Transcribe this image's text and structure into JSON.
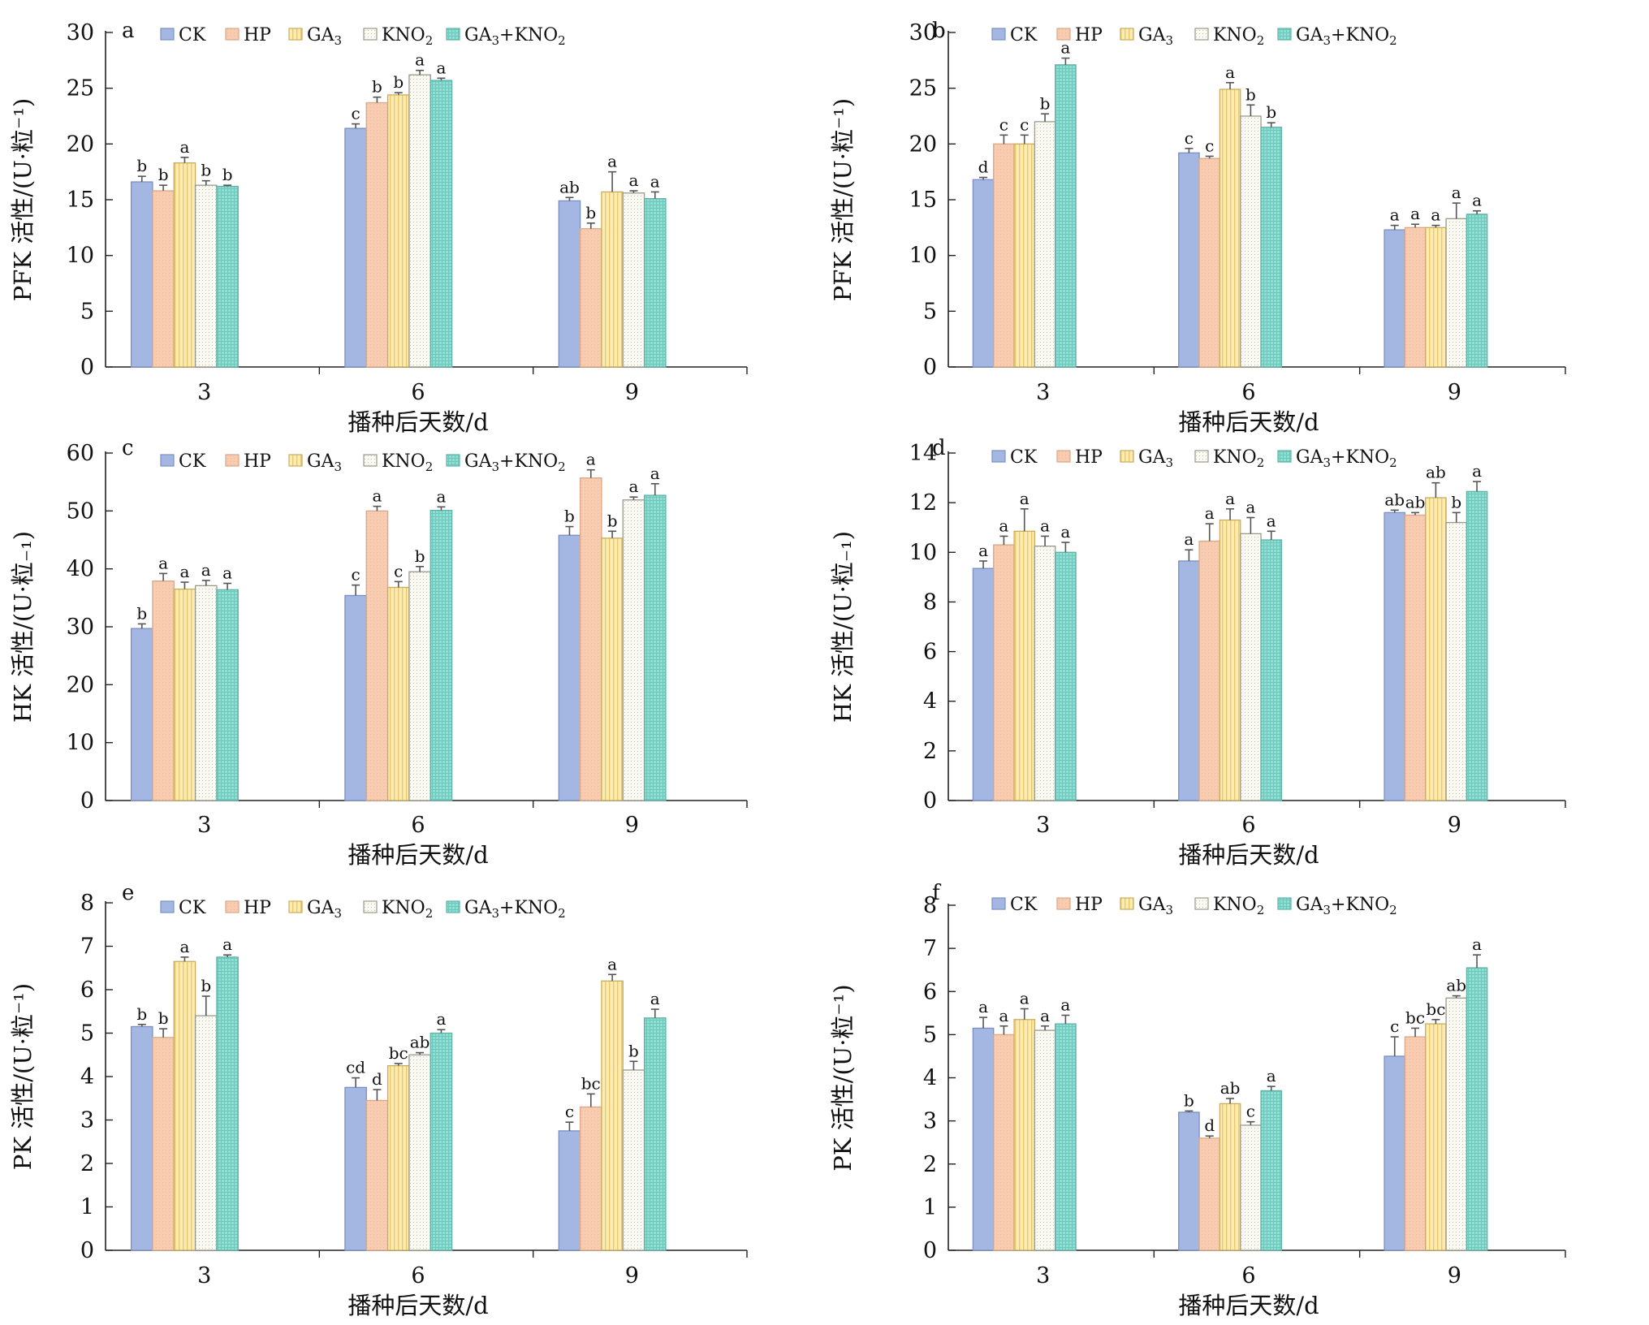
{
  "legend_labels": {
    "CK": "CK",
    "HP": "HP",
    "GA3_main": "GA",
    "GA3_sub": "3",
    "KNO2_main": "KNO",
    "KNO2_sub": "2",
    "GA3KNO2_a": "GA",
    "GA3KNO2_sub1": "3",
    "GA3KNO2_b": "+KNO",
    "GA3KNO2_sub2": "2"
  },
  "colors": {
    "CK": "#a4b7e3",
    "HP": "#f8ccb0",
    "GA3": "#fbe7a3",
    "KNO2": "#fafaf2",
    "GA3+KNO2": "#8fdad0"
  },
  "chart_data": [
    {
      "id": "a",
      "type": "bar",
      "panel_label": "a",
      "categories": [
        "3",
        "6",
        "9"
      ],
      "xlabel": "播种后天数/d",
      "ylabel": "PFK 活性/(U·粒⁻¹)",
      "ylim": [
        0,
        30
      ],
      "yticks": [
        0,
        5,
        10,
        15,
        20,
        25,
        30
      ],
      "series": [
        {
          "name": "CK",
          "values": [
            16.6,
            21.4,
            14.9
          ],
          "errors": [
            0.5,
            0.4,
            0.3
          ],
          "sig": [
            "b",
            "c",
            "ab"
          ]
        },
        {
          "name": "HP",
          "values": [
            15.8,
            23.7,
            12.4
          ],
          "errors": [
            0.5,
            0.5,
            0.5
          ],
          "sig": [
            "b",
            "b",
            "b"
          ]
        },
        {
          "name": "GA3",
          "values": [
            18.3,
            24.4,
            15.7
          ],
          "errors": [
            0.5,
            0.2,
            1.8
          ],
          "sig": [
            "a",
            "b",
            "a"
          ]
        },
        {
          "name": "KNO2",
          "values": [
            16.3,
            26.2,
            15.6
          ],
          "errors": [
            0.4,
            0.4,
            0.2
          ],
          "sig": [
            "b",
            "a",
            "a"
          ]
        },
        {
          "name": "GA3+KNO2",
          "values": [
            16.2,
            25.7,
            15.1
          ],
          "errors": [
            0.1,
            0.2,
            0.6
          ],
          "sig": [
            "b",
            "a",
            "a"
          ]
        }
      ]
    },
    {
      "id": "b",
      "type": "bar",
      "panel_label": "b",
      "categories": [
        "3",
        "6",
        "9"
      ],
      "xlabel": "播种后天数/d",
      "ylabel": "PFK 活性/(U·粒⁻¹)",
      "ylim": [
        0,
        30
      ],
      "yticks": [
        0,
        5,
        10,
        15,
        20,
        25,
        30
      ],
      "series": [
        {
          "name": "CK",
          "values": [
            16.8,
            19.2,
            12.3
          ],
          "errors": [
            0.2,
            0.4,
            0.4
          ],
          "sig": [
            "d",
            "c",
            "a"
          ]
        },
        {
          "name": "HP",
          "values": [
            20.0,
            18.7,
            12.5
          ],
          "errors": [
            0.8,
            0.2,
            0.3
          ],
          "sig": [
            "c",
            "c",
            "a"
          ]
        },
        {
          "name": "GA3",
          "values": [
            20.0,
            24.9,
            12.5
          ],
          "errors": [
            0.8,
            0.6,
            0.2
          ],
          "sig": [
            "c",
            "a",
            "a"
          ]
        },
        {
          "name": "KNO2",
          "values": [
            22.0,
            22.5,
            13.3
          ],
          "errors": [
            0.7,
            1.0,
            1.4
          ],
          "sig": [
            "b",
            "b",
            "a"
          ]
        },
        {
          "name": "GA3+KNO2",
          "values": [
            27.1,
            21.5,
            13.7
          ],
          "errors": [
            0.6,
            0.4,
            0.3
          ],
          "sig": [
            "a",
            "b",
            "a"
          ]
        }
      ]
    },
    {
      "id": "c",
      "type": "bar",
      "panel_label": "c",
      "categories": [
        "3",
        "6",
        "9"
      ],
      "xlabel": "播种后天数/d",
      "ylabel": "HK 活性/(U·粒₋₁)",
      "ylim": [
        0,
        60
      ],
      "yticks": [
        0,
        10,
        20,
        30,
        40,
        50,
        60
      ],
      "series": [
        {
          "name": "CK",
          "values": [
            29.7,
            35.4,
            45.8
          ],
          "errors": [
            0.8,
            1.8,
            1.5
          ],
          "sig": [
            "b",
            "c",
            "b"
          ]
        },
        {
          "name": "HP",
          "values": [
            37.9,
            50.0,
            55.7
          ],
          "errors": [
            1.3,
            0.8,
            1.4
          ],
          "sig": [
            "a",
            "a",
            "a"
          ]
        },
        {
          "name": "GA3",
          "values": [
            36.5,
            36.8,
            45.3
          ],
          "errors": [
            1.2,
            1.0,
            1.2
          ],
          "sig": [
            "a",
            "c",
            "b"
          ]
        },
        {
          "name": "KNO2",
          "values": [
            37.1,
            39.5,
            51.9
          ],
          "errors": [
            0.9,
            0.9,
            0.5
          ],
          "sig": [
            "a",
            "b",
            "a"
          ]
        },
        {
          "name": "GA3+KNO2",
          "values": [
            36.4,
            50.1,
            52.7
          ],
          "errors": [
            1.1,
            0.6,
            2.0
          ],
          "sig": [
            "a",
            "a",
            "a"
          ]
        }
      ]
    },
    {
      "id": "d",
      "type": "bar",
      "panel_label": "d",
      "categories": [
        "3",
        "6",
        "9"
      ],
      "xlabel": "播种后天数/d",
      "ylabel": "HK 活性/(U·粒₋₁)",
      "ylim": [
        0,
        14
      ],
      "yticks": [
        0,
        2,
        4,
        6,
        8,
        10,
        12,
        14
      ],
      "series": [
        {
          "name": "CK",
          "values": [
            9.35,
            9.65,
            11.6
          ],
          "errors": [
            0.3,
            0.45,
            0.1
          ],
          "sig": [
            "a",
            "a",
            "ab"
          ]
        },
        {
          "name": "HP",
          "values": [
            10.3,
            10.45,
            11.5
          ],
          "errors": [
            0.35,
            0.7,
            0.1
          ],
          "sig": [
            "a",
            "a",
            "ab"
          ]
        },
        {
          "name": "GA3",
          "values": [
            10.85,
            11.3,
            12.2
          ],
          "errors": [
            0.9,
            0.45,
            0.6
          ],
          "sig": [
            "a",
            "a",
            "ab"
          ]
        },
        {
          "name": "KNO2",
          "values": [
            10.25,
            10.75,
            11.2
          ],
          "errors": [
            0.4,
            0.65,
            0.4
          ],
          "sig": [
            "a",
            "a",
            "b"
          ]
        },
        {
          "name": "GA3+KNO2",
          "values": [
            10.0,
            10.5,
            12.45
          ],
          "errors": [
            0.4,
            0.35,
            0.4
          ],
          "sig": [
            "a",
            "a",
            "a"
          ]
        }
      ]
    },
    {
      "id": "e",
      "type": "bar",
      "panel_label": "e",
      "categories": [
        "3",
        "6",
        "9"
      ],
      "xlabel": "播种后天数/d",
      "ylabel": "PK 活性/(U·粒⁻¹)",
      "ylim": [
        0,
        8
      ],
      "yticks": [
        0,
        1,
        2,
        3,
        4,
        5,
        6,
        7,
        8
      ],
      "series": [
        {
          "name": "CK",
          "values": [
            5.15,
            3.75,
            2.75
          ],
          "errors": [
            0.05,
            0.22,
            0.2
          ],
          "sig": [
            "b",
            "cd",
            "c"
          ]
        },
        {
          "name": "HP",
          "values": [
            4.9,
            3.45,
            3.3
          ],
          "errors": [
            0.2,
            0.25,
            0.3
          ],
          "sig": [
            "b",
            "d",
            "bc"
          ]
        },
        {
          "name": "GA3",
          "values": [
            6.65,
            4.25,
            6.2
          ],
          "errors": [
            0.1,
            0.05,
            0.15
          ],
          "sig": [
            "a",
            "bc",
            "a"
          ]
        },
        {
          "name": "KNO2",
          "values": [
            5.4,
            4.5,
            4.15
          ],
          "errors": [
            0.45,
            0.05,
            0.2
          ],
          "sig": [
            "b",
            "ab",
            "b"
          ]
        },
        {
          "name": "GA3+KNO2",
          "values": [
            6.75,
            5.0,
            5.35
          ],
          "errors": [
            0.05,
            0.08,
            0.2
          ],
          "sig": [
            "a",
            "a",
            "a"
          ]
        }
      ]
    },
    {
      "id": "f",
      "type": "bar",
      "panel_label": "f",
      "categories": [
        "3",
        "6",
        "9"
      ],
      "xlabel": "播种后天数/d",
      "ylabel": "PK 活性/(U·粒⁻¹)",
      "ylim": [
        0,
        8
      ],
      "yticks": [
        0,
        1,
        2,
        3,
        4,
        5,
        6,
        7,
        8
      ],
      "series": [
        {
          "name": "CK",
          "values": [
            5.15,
            3.2,
            4.5
          ],
          "errors": [
            0.25,
            0.03,
            0.45
          ],
          "sig": [
            "a",
            "b",
            "c"
          ]
        },
        {
          "name": "HP",
          "values": [
            5.0,
            2.6,
            4.95
          ],
          "errors": [
            0.2,
            0.05,
            0.2
          ],
          "sig": [
            "a",
            "d",
            "bc"
          ]
        },
        {
          "name": "GA3",
          "values": [
            5.35,
            3.4,
            5.25
          ],
          "errors": [
            0.25,
            0.12,
            0.1
          ],
          "sig": [
            "a",
            "ab",
            "bc"
          ]
        },
        {
          "name": "KNO2",
          "values": [
            5.1,
            2.9,
            5.85
          ],
          "errors": [
            0.1,
            0.08,
            0.05
          ],
          "sig": [
            "a",
            "c",
            "ab"
          ]
        },
        {
          "name": "GA3+KNO2",
          "values": [
            5.25,
            3.7,
            6.55
          ],
          "errors": [
            0.2,
            0.1,
            0.3
          ],
          "sig": [
            "a",
            "a",
            "a"
          ]
        }
      ]
    }
  ]
}
